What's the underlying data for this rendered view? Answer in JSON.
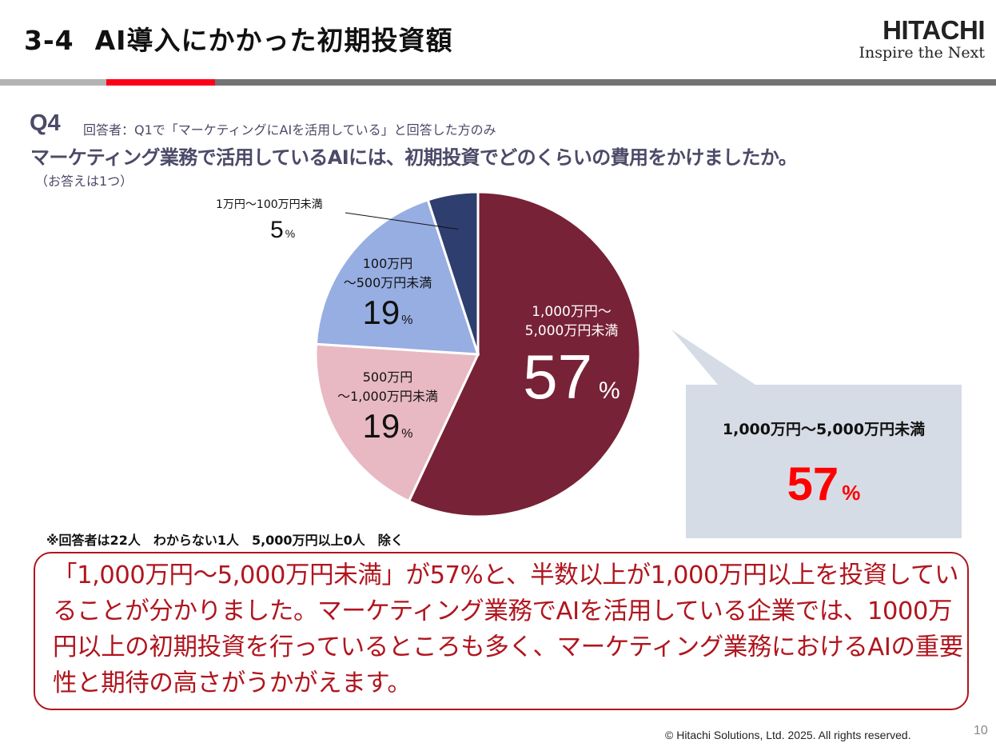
{
  "header": {
    "section_number": "3-4",
    "title": "AI導入にかかった初期投資額",
    "logo_brand": "HITACHI",
    "logo_tagline": "Inspire the Next"
  },
  "question": {
    "label": "Q4",
    "respondents": "回答者：Q1で「マーケティングにAIを活用している」と回答した方のみ",
    "text": "マーケティング業務で活用しているAIには、初期投資でどのくらいの費用をかけましたか。",
    "note": "（お答えは1つ）"
  },
  "chart_data": {
    "type": "pie",
    "title": "",
    "start_angle": "12 o'clock, clockwise",
    "slices": [
      {
        "label_line1": "1,000万円～",
        "label_line2": "5,000万円未満",
        "value": 57,
        "display": "57",
        "color": "#772236"
      },
      {
        "label_line1": "500万円",
        "label_line2": "～1,000万円未満",
        "value": 19,
        "display": "19",
        "color": "#e8b9c3"
      },
      {
        "label_line1": "100万円",
        "label_line2": "～500万円未満",
        "value": 19,
        "display": "19",
        "color": "#97aee2"
      },
      {
        "label_line1": "1万円～100万円未満",
        "label_line2": "",
        "value": 5,
        "display": "5",
        "color": "#2e3e6e"
      }
    ],
    "unit": "%",
    "leader_line_on": "1万円～100万円未満"
  },
  "callout": {
    "category": "1,000万円～5,000万円未満",
    "value": "57",
    "unit": "%",
    "value_color": "#ff0000"
  },
  "footnote": "※回答者は22人　わからない1人　5,000万円以上0人　除く",
  "summary": "「1,000万円～5,000万円未満」が57%と、半数以上が1,000万円以上を投資していることが分かりました。マーケティング業務でAIを活用している企業では、1000万円以上の初期投資を行っているところも多く、マーケティング業務におけるAIの重要性と期待の高さがうかがえます。",
  "footer": {
    "copyright": "© Hitachi Solutions, Ltd. 2025. All rights reserved.",
    "page_number": "10"
  }
}
